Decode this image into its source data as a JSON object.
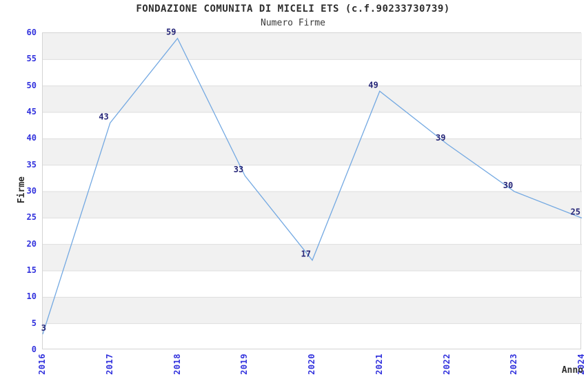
{
  "chart_data": {
    "type": "line",
    "title": "FONDAZIONE COMUNITA DI MICELI ETS (c.f.90233730739)",
    "subtitle": "Numero Firme",
    "xlabel": "Anno",
    "ylabel": "Firme",
    "x": [
      "2016",
      "2017",
      "2018",
      "2019",
      "2020",
      "2021",
      "2022",
      "2023",
      "2024"
    ],
    "values": [
      3,
      43,
      59,
      33,
      17,
      49,
      39,
      30,
      25
    ],
    "ylim": [
      0,
      60
    ],
    "ytick_step": 5,
    "grid": "alternating horizontal gray bands every 5 units with light gridlines",
    "legend": "none",
    "data_labels": true,
    "marker": "none"
  },
  "colors": {
    "line": "#74a9e2",
    "band": "#f1f1f1",
    "grid": "#dedede",
    "plot_border": "#d4d4d4",
    "tick_label": "#3232dd",
    "data_label": "#262678",
    "title_text": "#2e2e2e"
  }
}
